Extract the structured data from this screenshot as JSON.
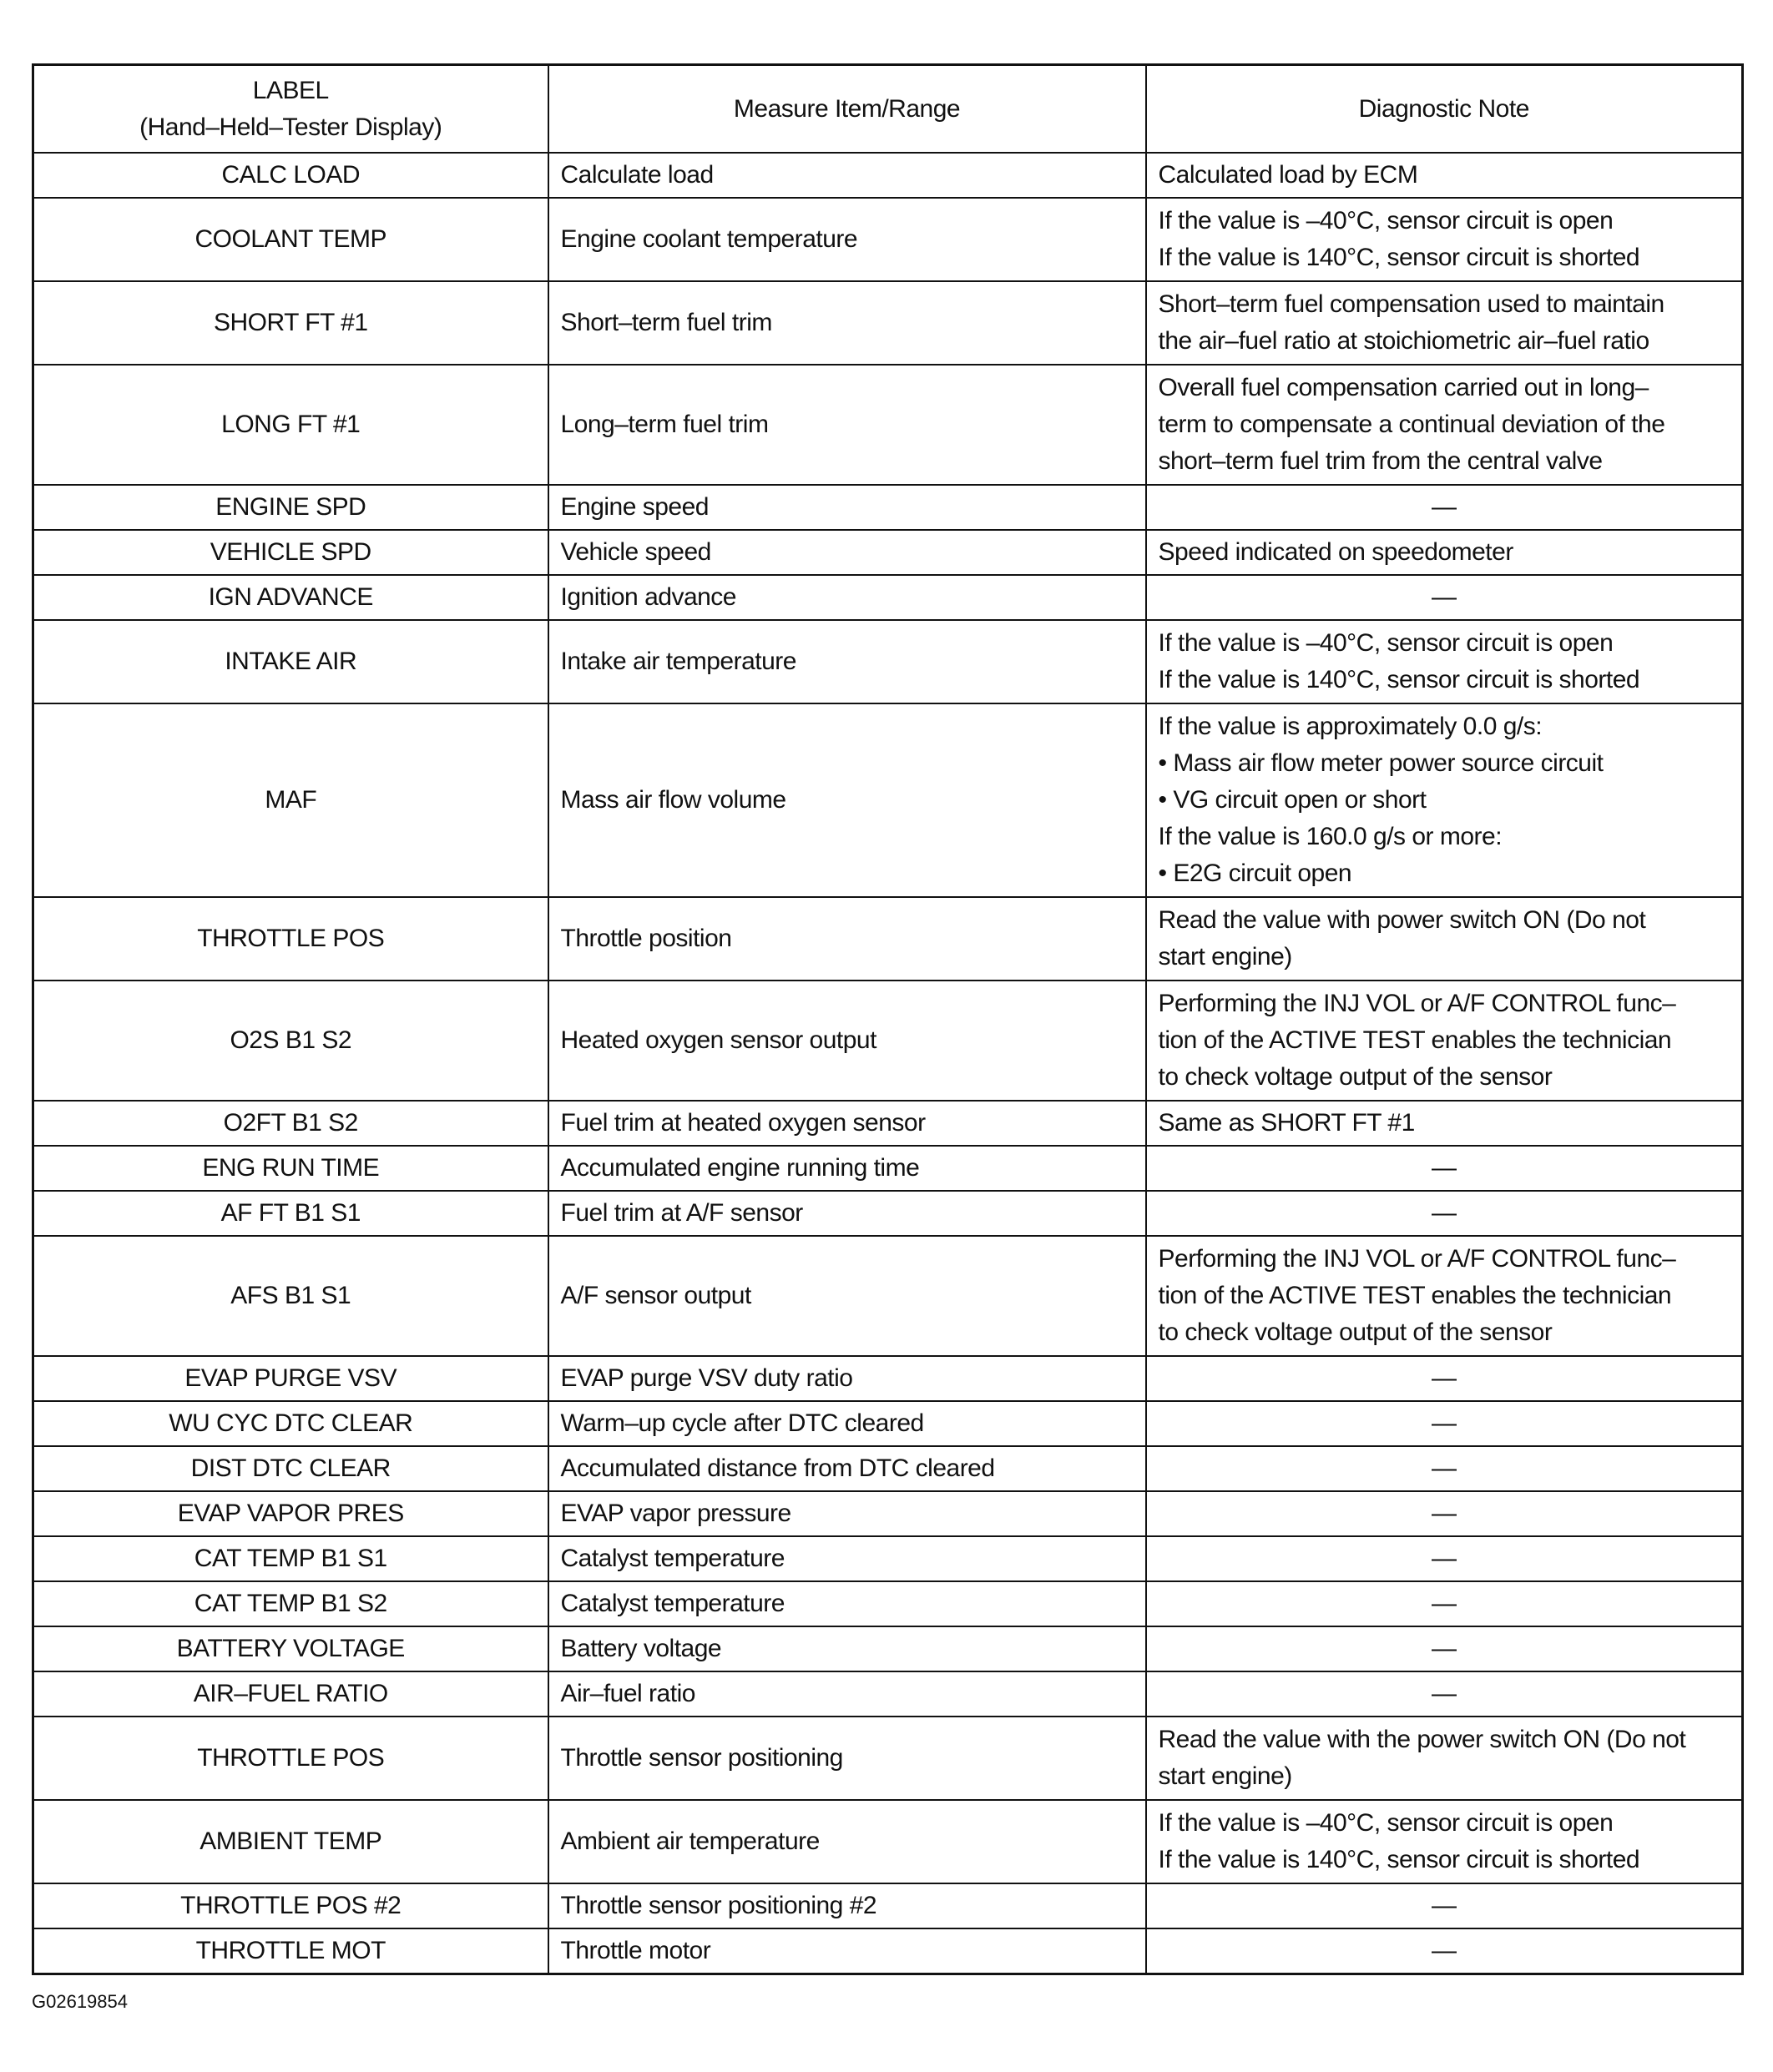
{
  "header": {
    "label_line1": "LABEL",
    "label_line2": "(Hand–Held–Tester Display)",
    "measure": "Measure Item/Range",
    "note": "Diagnostic Note"
  },
  "rows": [
    {
      "label": "CALC LOAD",
      "measure": "Calculate load",
      "note": [
        "Calculated load by ECM"
      ]
    },
    {
      "label": "COOLANT TEMP",
      "measure": "Engine coolant temperature",
      "note": [
        "If the value is –40°C, sensor circuit is open",
        "If the value is 140°C, sensor circuit is shorted"
      ]
    },
    {
      "label": "SHORT FT #1",
      "measure": "Short–term fuel trim",
      "note": [
        "Short–term fuel compensation used to maintain",
        "the air–fuel ratio at stoichiometric air–fuel ratio"
      ]
    },
    {
      "label": "LONG FT #1",
      "measure": "Long–term fuel trim",
      "note": [
        "Overall fuel compensation carried out in long–",
        "term to compensate a continual deviation of the",
        "short–term fuel trim from the central valve"
      ]
    },
    {
      "label": "ENGINE SPD",
      "measure": "Engine speed",
      "note": [
        "—"
      ]
    },
    {
      "label": "VEHICLE SPD",
      "measure": "Vehicle speed",
      "note": [
        "Speed indicated on speedometer"
      ]
    },
    {
      "label": "IGN ADVANCE",
      "measure": "Ignition advance",
      "note": [
        "—"
      ]
    },
    {
      "label": "INTAKE AIR",
      "measure": "Intake air temperature",
      "note": [
        "If the value is –40°C, sensor circuit is open",
        "If the value is 140°C, sensor circuit is shorted"
      ]
    },
    {
      "label": "MAF",
      "measure": "Mass air flow volume",
      "note": [
        "If the value is approximately 0.0 g/s:",
        "• Mass air flow meter power source circuit",
        "• VG circuit open or short",
        "If the value is 160.0 g/s or more:",
        "• E2G circuit open"
      ]
    },
    {
      "label": "THROTTLE POS",
      "measure": "Throttle position",
      "note": [
        "Read the value with power switch ON (Do not",
        "start engine)"
      ]
    },
    {
      "label": "O2S B1 S2",
      "measure": "Heated oxygen sensor output",
      "note": [
        "Performing the INJ VOL or A/F CONTROL func–",
        "tion of the ACTIVE TEST enables the technician",
        "to check voltage output of the sensor"
      ]
    },
    {
      "label": "O2FT B1 S2",
      "measure": "Fuel trim at heated oxygen sensor",
      "note": [
        "Same as SHORT FT #1"
      ]
    },
    {
      "label": "ENG RUN TIME",
      "measure": "Accumulated engine running time",
      "note": [
        "—"
      ]
    },
    {
      "label": "AF FT B1 S1",
      "measure": "Fuel trim at A/F sensor",
      "note": [
        "—"
      ]
    },
    {
      "label": "AFS B1 S1",
      "measure": "A/F sensor output",
      "note": [
        "Performing the INJ VOL or A/F CONTROL func–",
        "tion of the ACTIVE TEST enables the technician",
        "to check voltage output of the sensor"
      ]
    },
    {
      "label": "EVAP PURGE VSV",
      "measure": "EVAP purge VSV duty ratio",
      "note": [
        "—"
      ]
    },
    {
      "label": "WU CYC DTC CLEAR",
      "measure": "Warm–up cycle after DTC cleared",
      "note": [
        "—"
      ]
    },
    {
      "label": "DIST DTC CLEAR",
      "measure": "Accumulated distance from DTC cleared",
      "note": [
        "—"
      ]
    },
    {
      "label": "EVAP VAPOR PRES",
      "measure": "EVAP vapor pressure",
      "note": [
        "—"
      ]
    },
    {
      "label": "CAT TEMP B1 S1",
      "measure": "Catalyst temperature",
      "note": [
        "—"
      ]
    },
    {
      "label": "CAT TEMP B1 S2",
      "measure": "Catalyst temperature",
      "note": [
        "—"
      ]
    },
    {
      "label": "BATTERY VOLTAGE",
      "measure": "Battery voltage",
      "note": [
        "—"
      ]
    },
    {
      "label": "AIR–FUEL RATIO",
      "measure": "Air–fuel ratio",
      "note": [
        "—"
      ]
    },
    {
      "label": "THROTTLE POS",
      "measure": "Throttle sensor positioning",
      "note": [
        "Read the value with the power switch ON (Do not",
        "start engine)"
      ]
    },
    {
      "label": "AMBIENT TEMP",
      "measure": "Ambient air temperature",
      "note": [
        "If the value is –40°C, sensor circuit is open",
        "If the value is 140°C, sensor circuit is shorted"
      ]
    },
    {
      "label": "THROTTLE POS #2",
      "measure": "Throttle sensor positioning #2",
      "note": [
        "—"
      ]
    },
    {
      "label": "THROTTLE MOT",
      "measure": "Throttle motor",
      "note": [
        "—"
      ]
    }
  ],
  "caption": "G02619854"
}
